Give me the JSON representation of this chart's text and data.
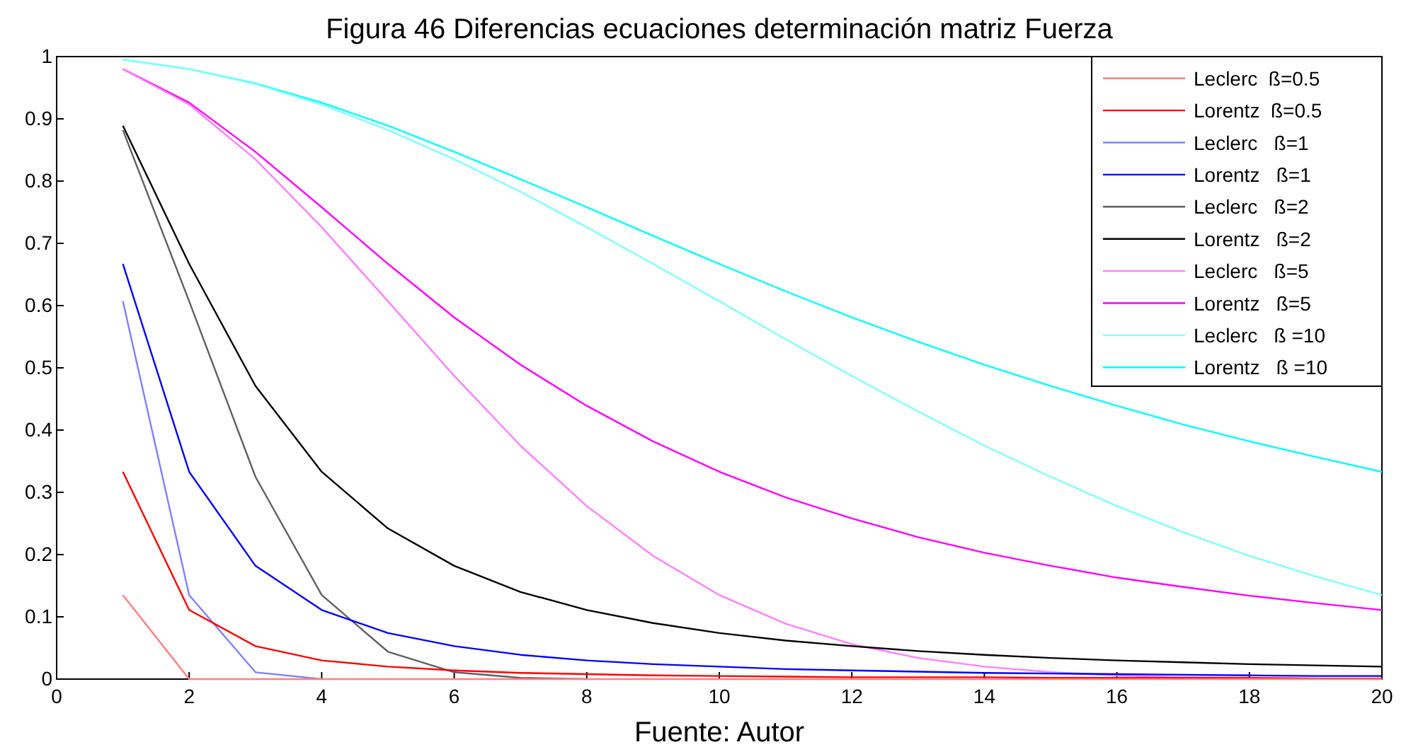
{
  "chart_data": {
    "type": "line",
    "title": "Figura 46 Diferencias ecuaciones determinación matriz Fuerza",
    "annotations": [
      "Fuente: Autor"
    ],
    "x": [
      1,
      2,
      3,
      4,
      5,
      6,
      7,
      8,
      9,
      10,
      11,
      12,
      13,
      14,
      15,
      16,
      17,
      18,
      19,
      20
    ],
    "xlim": [
      0,
      20
    ],
    "xticks": [
      0,
      2,
      4,
      6,
      8,
      10,
      12,
      14,
      16,
      18,
      20
    ],
    "ylim": [
      0,
      1
    ],
    "yticks": [
      0,
      0.1,
      0.2,
      0.3,
      0.4,
      0.5,
      0.6,
      0.7,
      0.8,
      0.9,
      1
    ],
    "grid": false,
    "legend": "top right",
    "marker": "none",
    "line_style": "solid",
    "series": [
      {
        "name": "Leclerc  ß=0.5",
        "color": "#ff8080",
        "values": [
          0.135,
          0,
          0,
          0,
          0,
          0,
          0,
          0,
          0,
          0,
          0,
          0,
          0,
          0,
          0,
          0,
          0,
          0,
          0,
          0
        ]
      },
      {
        "name": "Lorentz  ß=0.5",
        "color": "#ff0000",
        "values": [
          0.333,
          0.111,
          0.053,
          0.03,
          0.02,
          0.014,
          0.01,
          0.008,
          0.006,
          0.005,
          0.004,
          0.003,
          0.003,
          0.003,
          0.002,
          0.002,
          0.002,
          0.002,
          0.001,
          0.001
        ]
      },
      {
        "name": "Leclerc   ß=1",
        "color": "#8080ff",
        "values": [
          0.607,
          0.135,
          0.011,
          0,
          null,
          null,
          null,
          null,
          null,
          null,
          null,
          null,
          null,
          null,
          null,
          null,
          null,
          null,
          null,
          null
        ]
      },
      {
        "name": "Lorentz   ß=1",
        "color": "#0000ff",
        "values": [
          0.667,
          0.333,
          0.182,
          0.111,
          0.074,
          0.053,
          0.039,
          0.03,
          0.024,
          0.02,
          0.016,
          0.014,
          0.012,
          0.01,
          0.009,
          0.008,
          0.007,
          0.006,
          0.005,
          0.005
        ]
      },
      {
        "name": "Leclerc   ß=2",
        "color": "#606060",
        "values": [
          0.882,
          0.607,
          0.325,
          0.135,
          0.044,
          0.011,
          0.002,
          0,
          null,
          null,
          null,
          null,
          null,
          null,
          null,
          null,
          null,
          null,
          null,
          null
        ]
      },
      {
        "name": "Lorentz   ß=2",
        "color": "#000000",
        "values": [
          0.889,
          0.667,
          0.471,
          0.333,
          0.242,
          0.182,
          0.14,
          0.111,
          0.09,
          0.074,
          0.062,
          0.053,
          0.045,
          0.039,
          0.034,
          0.03,
          0.027,
          0.024,
          0.022,
          0.02
        ]
      },
      {
        "name": "Leclerc   ß=5",
        "color": "#ff80ff",
        "values": [
          0.98,
          0.923,
          0.835,
          0.726,
          0.607,
          0.487,
          0.375,
          0.278,
          0.198,
          0.135,
          0.089,
          0.056,
          0.034,
          0.02,
          0.011,
          0.006,
          0.003,
          0.002,
          0.001,
          0
        ]
      },
      {
        "name": "Lorentz   ß=5",
        "color": "#ff00ff",
        "values": [
          0.98,
          0.926,
          0.847,
          0.758,
          0.667,
          0.581,
          0.505,
          0.439,
          0.382,
          0.333,
          0.292,
          0.258,
          0.228,
          0.203,
          0.182,
          0.163,
          0.148,
          0.134,
          0.122,
          0.111
        ]
      },
      {
        "name": "Leclerc   ß =10",
        "color": "#80ffff",
        "values": [
          0.995,
          0.98,
          0.956,
          0.923,
          0.882,
          0.835,
          0.783,
          0.726,
          0.667,
          0.607,
          0.546,
          0.487,
          0.43,
          0.375,
          0.325,
          0.278,
          0.236,
          0.198,
          0.165,
          0.135
        ]
      },
      {
        "name": "Lorentz   ß =10",
        "color": "#00ffff",
        "values": [
          0.995,
          0.98,
          0.957,
          0.926,
          0.889,
          0.847,
          0.803,
          0.758,
          0.712,
          0.667,
          0.623,
          0.581,
          0.542,
          0.505,
          0.471,
          0.439,
          0.409,
          0.382,
          0.357,
          0.333
        ]
      }
    ]
  }
}
